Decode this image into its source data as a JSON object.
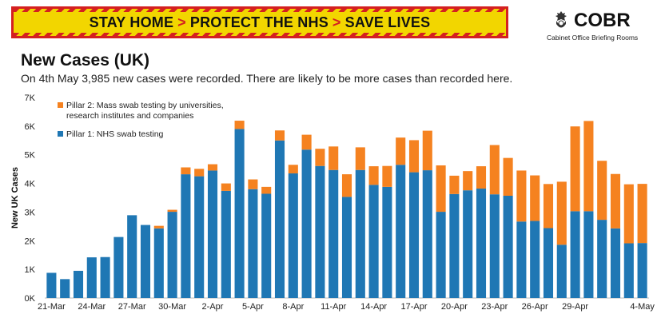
{
  "banner": {
    "part1": "STAY HOME",
    "part2": "PROTECT THE NHS",
    "part3": "SAVE LIVES",
    "separator": ">"
  },
  "logo": {
    "name": "COBR",
    "subtitle": "Cabinet Office Briefing Rooms",
    "icon": "royal-crest-icon"
  },
  "colors": {
    "pillar1": "#1f77b4",
    "pillar2": "#f58220",
    "banner_yellow": "#f2d600",
    "banner_red": "#d42020"
  },
  "chart_data": {
    "type": "bar",
    "stacked": true,
    "title": "New Cases (UK)",
    "subtitle": "On 4th May 3,985 new cases were recorded. There are likely to be more cases than recorded here.",
    "ylabel": "New UK Cases",
    "xlabel": "",
    "ylim": [
      0,
      7000
    ],
    "yticks": [
      0,
      1000,
      2000,
      3000,
      4000,
      5000,
      6000,
      7000
    ],
    "ytick_labels": [
      "0K",
      "1K",
      "2K",
      "3K",
      "4K",
      "5K",
      "6K",
      "7K"
    ],
    "xtick_labels": [
      "21-Mar",
      "24-Mar",
      "27-Mar",
      "30-Mar",
      "2-Apr",
      "5-Apr",
      "8-Apr",
      "11-Apr",
      "14-Apr",
      "17-Apr",
      "20-Apr",
      "23-Apr",
      "26-Apr",
      "29-Apr",
      "4-May"
    ],
    "categories": [
      "21-Mar",
      "22-Mar",
      "23-Mar",
      "24-Mar",
      "25-Mar",
      "26-Mar",
      "27-Mar",
      "28-Mar",
      "29-Mar",
      "30-Mar",
      "31-Mar",
      "1-Apr",
      "2-Apr",
      "3-Apr",
      "4-Apr",
      "5-Apr",
      "6-Apr",
      "7-Apr",
      "8-Apr",
      "9-Apr",
      "10-Apr",
      "11-Apr",
      "12-Apr",
      "13-Apr",
      "14-Apr",
      "15-Apr",
      "16-Apr",
      "17-Apr",
      "18-Apr",
      "19-Apr",
      "20-Apr",
      "21-Apr",
      "22-Apr",
      "23-Apr",
      "24-Apr",
      "25-Apr",
      "26-Apr",
      "27-Apr",
      "28-Apr",
      "29-Apr",
      "30-Apr",
      "1-May",
      "2-May",
      "3-May",
      "4-May"
    ],
    "legend": "top-left",
    "series": [
      {
        "name": "Pillar 1: NHS swab testing",
        "values": [
          880,
          660,
          950,
          1420,
          1430,
          2130,
          2890,
          2550,
          2430,
          3010,
          4320,
          4250,
          4450,
          3740,
          5900,
          3800,
          3640,
          5500,
          4350,
          5180,
          4610,
          4470,
          3530,
          4470,
          3950,
          3880,
          4650,
          4390,
          4460,
          3010,
          3630,
          3760,
          3820,
          3620,
          3570,
          2670,
          2690,
          2440,
          1860,
          3030,
          3030,
          2730,
          2430,
          1910,
          1920
        ]
      },
      {
        "name": "Pillar 2: Mass swab testing by universities, research institutes and companies",
        "values": [
          0,
          0,
          0,
          0,
          0,
          0,
          0,
          0,
          90,
          70,
          240,
          260,
          220,
          260,
          290,
          340,
          240,
          350,
          300,
          520,
          600,
          820,
          790,
          790,
          650,
          730,
          950,
          1120,
          1380,
          1620,
          640,
          670,
          780,
          1720,
          1320,
          1780,
          1590,
          1540,
          2200,
          2960,
          3150,
          2060,
          1900,
          2060,
          2065
        ]
      }
    ]
  }
}
